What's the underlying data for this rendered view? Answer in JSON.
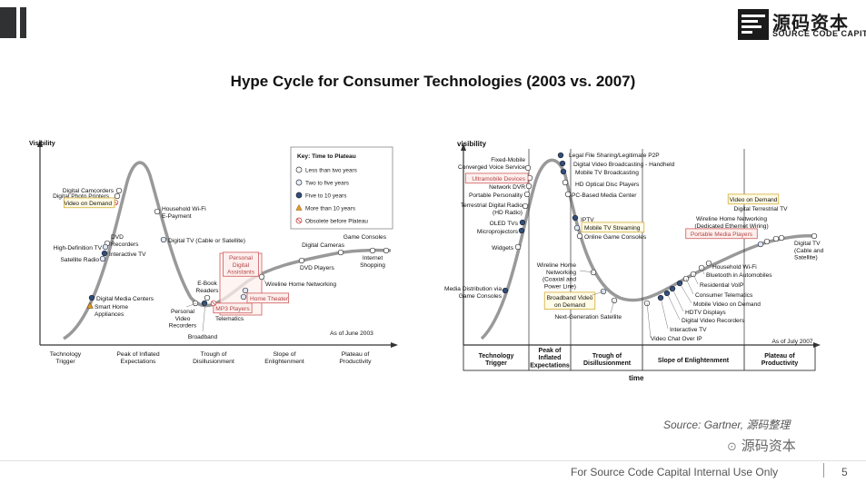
{
  "brand": {
    "name_cn": "源码资本",
    "name_en": "SOURCE CODE CAPITAL"
  },
  "title": "Hype Cycle for Consumer Technologies (2003 vs. 2007)",
  "left_chart": {
    "y_axis_label": "Visibility",
    "phases": [
      "Technology\nTrigger",
      "Peak of Inflated\nExpectations",
      "Trough of\nDisillusionment",
      "Slope of\nEnlightenment",
      "Plateau of\nProductivity"
    ],
    "date_note": "As of June 2003",
    "key": {
      "title": "Key: Time to Plateau",
      "items": [
        {
          "label": "Less than two years",
          "marker": "circle-white"
        },
        {
          "label": "Two to five years",
          "marker": "circle-light"
        },
        {
          "label": "Five to 10 years",
          "marker": "circle-dark"
        },
        {
          "label": "More than 10 years",
          "marker": "triangle-orange"
        },
        {
          "label": "Obsolete before Plateau",
          "marker": "crossed-circle-red"
        }
      ]
    },
    "technologies": [
      {
        "label": "Digital Camcorders"
      },
      {
        "label": "Digital Photo Printers"
      },
      {
        "label": "Video on Demand",
        "highlight": "yellow"
      },
      {
        "label": "Household Wi-Fi\nE-Payment"
      },
      {
        "label": "DVD\nRecorders"
      },
      {
        "label": "High-Definition TV"
      },
      {
        "label": "Interactive TV"
      },
      {
        "label": "Satellite Radio"
      },
      {
        "label": "Digital TV (Cable or Satellite)"
      },
      {
        "label": "Digital Media Centers"
      },
      {
        "label": "Smart Home\nAppliances"
      },
      {
        "label": "Personal\nDigital\nAssistants",
        "highlight": "red"
      },
      {
        "label": "E-Book\nReaders"
      },
      {
        "label": "Home Theater",
        "highlight": "red"
      },
      {
        "label": "MP3 Players",
        "highlight": "red"
      },
      {
        "label": "Personal\nVideo\nRecorders"
      },
      {
        "label": "Telematics"
      },
      {
        "label": "Broadband"
      },
      {
        "label": "Wireline Home Networking"
      },
      {
        "label": "Digital Cameras"
      },
      {
        "label": "DVD Players"
      },
      {
        "label": "Game Consoles"
      },
      {
        "label": "Internet\nShopping"
      }
    ]
  },
  "right_chart": {
    "y_axis_label": "visibility",
    "x_axis_label": "time",
    "phases": [
      "Technology\nTrigger",
      "Peak of\nInflated\nExpectations",
      "Trough of\nDisillusionment",
      "Slope of Enlightenment",
      "Plateau of\nProductivity"
    ],
    "date_note": "As of July 2007",
    "technologies": [
      {
        "label": "Fixed-Mobile\nConverged Voice Service"
      },
      {
        "label": "Ultramobile Devices",
        "highlight": "red"
      },
      {
        "label": "Network DVR"
      },
      {
        "label": "Portable Personality"
      },
      {
        "label": "Terrestrial Digital Radio\n(HD Radio)"
      },
      {
        "label": "OLED TVs"
      },
      {
        "label": "Microprojectors"
      },
      {
        "label": "Widgets"
      },
      {
        "label": "Media Distribution via\nGame Consoles"
      },
      {
        "label": "Legal File Sharing/Legitimate P2P"
      },
      {
        "label": "Digital Video Broadcasting - Handheld"
      },
      {
        "label": "Mobile TV Broadcasting"
      },
      {
        "label": "HD Optical Disc Players"
      },
      {
        "label": "PC-Based Media Center"
      },
      {
        "label": "IPTV"
      },
      {
        "label": "Mobile TV Streaming",
        "highlight": "yellow"
      },
      {
        "label": "Online Game Consoles"
      },
      {
        "label": "Wireline Home\nNetworking\n(Coaxial and\nPower Line)"
      },
      {
        "label": "Broadband Video\non Demand",
        "highlight": "yellow"
      },
      {
        "label": "Next-Generation Satellite"
      },
      {
        "label": "Video Chat Over IP"
      },
      {
        "label": "Interactive TV"
      },
      {
        "label": "Digital Video Recorders"
      },
      {
        "label": "HDTV Displays"
      },
      {
        "label": "Mobile Video on Demand"
      },
      {
        "label": "Consumer Telematics"
      },
      {
        "label": "Residential VoIP"
      },
      {
        "label": "Bluetooth in Automobiles"
      },
      {
        "label": "Household Wi-Fi"
      },
      {
        "label": "Video on Demand",
        "highlight": "yellow"
      },
      {
        "label": "Digital Terrestrial TV"
      },
      {
        "label": "Wireline Home Networking\n(Dedicated Ethernet Wiring)"
      },
      {
        "label": "Portable Media Players",
        "highlight": "red"
      },
      {
        "label": "Digital TV\n(Cable and\nSatellite)"
      }
    ]
  },
  "source": "Source: Gartner, 源码整理",
  "watermark": "源码资本",
  "footer": {
    "text": "For Source Code Capital Internal Use Only",
    "page": "5"
  }
}
